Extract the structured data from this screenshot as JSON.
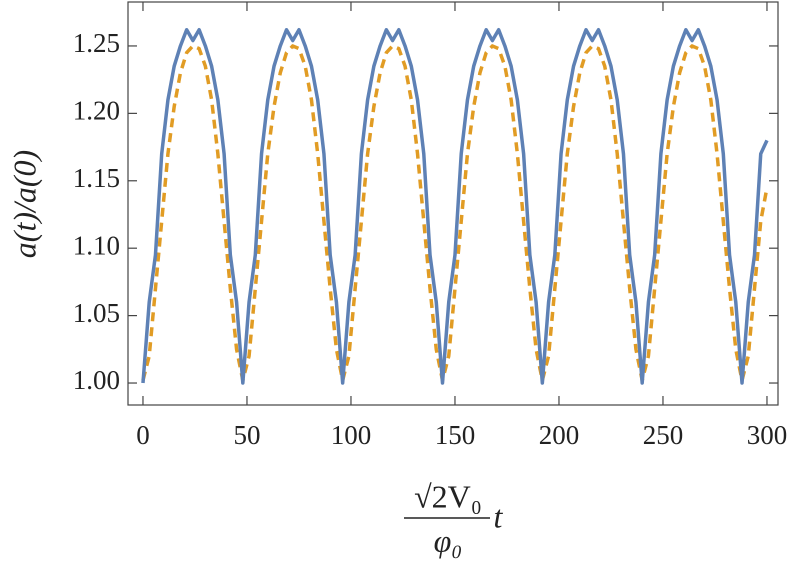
{
  "chart_data": {
    "type": "line",
    "ylabel": "a(t)/a(0)",
    "xlabel": {
      "numerator": "√2V₀",
      "denominator": "φ₀",
      "factor": "t"
    },
    "x": [
      0,
      3,
      6,
      9,
      12,
      15,
      18,
      21,
      24,
      27,
      30,
      33,
      36,
      39,
      42,
      45,
      48,
      51,
      54,
      57,
      60,
      63,
      66,
      69,
      72,
      75,
      78,
      81,
      84,
      87,
      90,
      93,
      96,
      99,
      102,
      105,
      108,
      111,
      114,
      117,
      120,
      123,
      126,
      129,
      132,
      135,
      138,
      141,
      144,
      147,
      150,
      153,
      156,
      159,
      162,
      165,
      168,
      171,
      174,
      177,
      180,
      183,
      186,
      189,
      192,
      195,
      198,
      201,
      204,
      207,
      210,
      213,
      216,
      219,
      222,
      225,
      228,
      231,
      234,
      237,
      240,
      243,
      246,
      249,
      252,
      255,
      258,
      261,
      264,
      267,
      270,
      273,
      276,
      279,
      282,
      285,
      288,
      291,
      294,
      297,
      300
    ],
    "series": [
      {
        "color": "#5e81b5",
        "style": "solid",
        "values": [
          1.0,
          1.06,
          1.095,
          1.17,
          1.21,
          1.235,
          1.25,
          1.262,
          1.254,
          1.262,
          1.25,
          1.235,
          1.21,
          1.17,
          1.095,
          1.06,
          1.0,
          1.06,
          1.095,
          1.17,
          1.21,
          1.235,
          1.25,
          1.262,
          1.254,
          1.262,
          1.25,
          1.235,
          1.21,
          1.17,
          1.095,
          1.06,
          1.0,
          1.06,
          1.095,
          1.17,
          1.21,
          1.235,
          1.25,
          1.262,
          1.254,
          1.262,
          1.25,
          1.235,
          1.21,
          1.17,
          1.095,
          1.06,
          1.0,
          1.06,
          1.095,
          1.17,
          1.21,
          1.235,
          1.25,
          1.262,
          1.254,
          1.262,
          1.25,
          1.235,
          1.21,
          1.17,
          1.095,
          1.06,
          1.0,
          1.06,
          1.095,
          1.17,
          1.21,
          1.235,
          1.25,
          1.262,
          1.254,
          1.262,
          1.25,
          1.235,
          1.21,
          1.17,
          1.095,
          1.06,
          1.0,
          1.06,
          1.095,
          1.17,
          1.21,
          1.235,
          1.25,
          1.262,
          1.254,
          1.262,
          1.25,
          1.235,
          1.21,
          1.17,
          1.095,
          1.06,
          1.0,
          1.06,
          1.095,
          1.17,
          1.18
        ]
      },
      {
        "color": "#e19c24",
        "style": "dashed",
        "values": [
          1.002,
          1.02,
          1.07,
          1.12,
          1.17,
          1.205,
          1.23,
          1.245,
          1.25,
          1.248,
          1.235,
          1.21,
          1.17,
          1.12,
          1.07,
          1.025,
          1.002,
          1.02,
          1.07,
          1.12,
          1.17,
          1.205,
          1.23,
          1.245,
          1.25,
          1.248,
          1.235,
          1.21,
          1.17,
          1.12,
          1.07,
          1.025,
          1.002,
          1.02,
          1.07,
          1.12,
          1.17,
          1.205,
          1.23,
          1.245,
          1.25,
          1.248,
          1.235,
          1.21,
          1.17,
          1.12,
          1.07,
          1.025,
          1.002,
          1.02,
          1.07,
          1.12,
          1.17,
          1.205,
          1.23,
          1.245,
          1.25,
          1.248,
          1.235,
          1.21,
          1.17,
          1.12,
          1.07,
          1.025,
          1.002,
          1.02,
          1.07,
          1.12,
          1.17,
          1.205,
          1.23,
          1.245,
          1.25,
          1.248,
          1.235,
          1.21,
          1.17,
          1.12,
          1.07,
          1.025,
          1.002,
          1.02,
          1.07,
          1.12,
          1.17,
          1.205,
          1.23,
          1.245,
          1.25,
          1.248,
          1.235,
          1.21,
          1.17,
          1.12,
          1.07,
          1.025,
          1.002,
          1.02,
          1.07,
          1.12,
          1.145
        ]
      }
    ],
    "xlim": [
      -7.2,
      305.3
    ],
    "ylim": [
      0.9837,
      1.2826
    ],
    "xticks": [
      0,
      50,
      100,
      150,
      200,
      250,
      300
    ],
    "yticks": [
      {
        "value": 1.0,
        "label": "1.00"
      },
      {
        "value": 1.05,
        "label": "1.05"
      },
      {
        "value": 1.1,
        "label": "1.10"
      },
      {
        "value": 1.15,
        "label": "1.15"
      },
      {
        "value": 1.2,
        "label": "1.20"
      },
      {
        "value": 1.25,
        "label": "1.25"
      }
    ]
  }
}
